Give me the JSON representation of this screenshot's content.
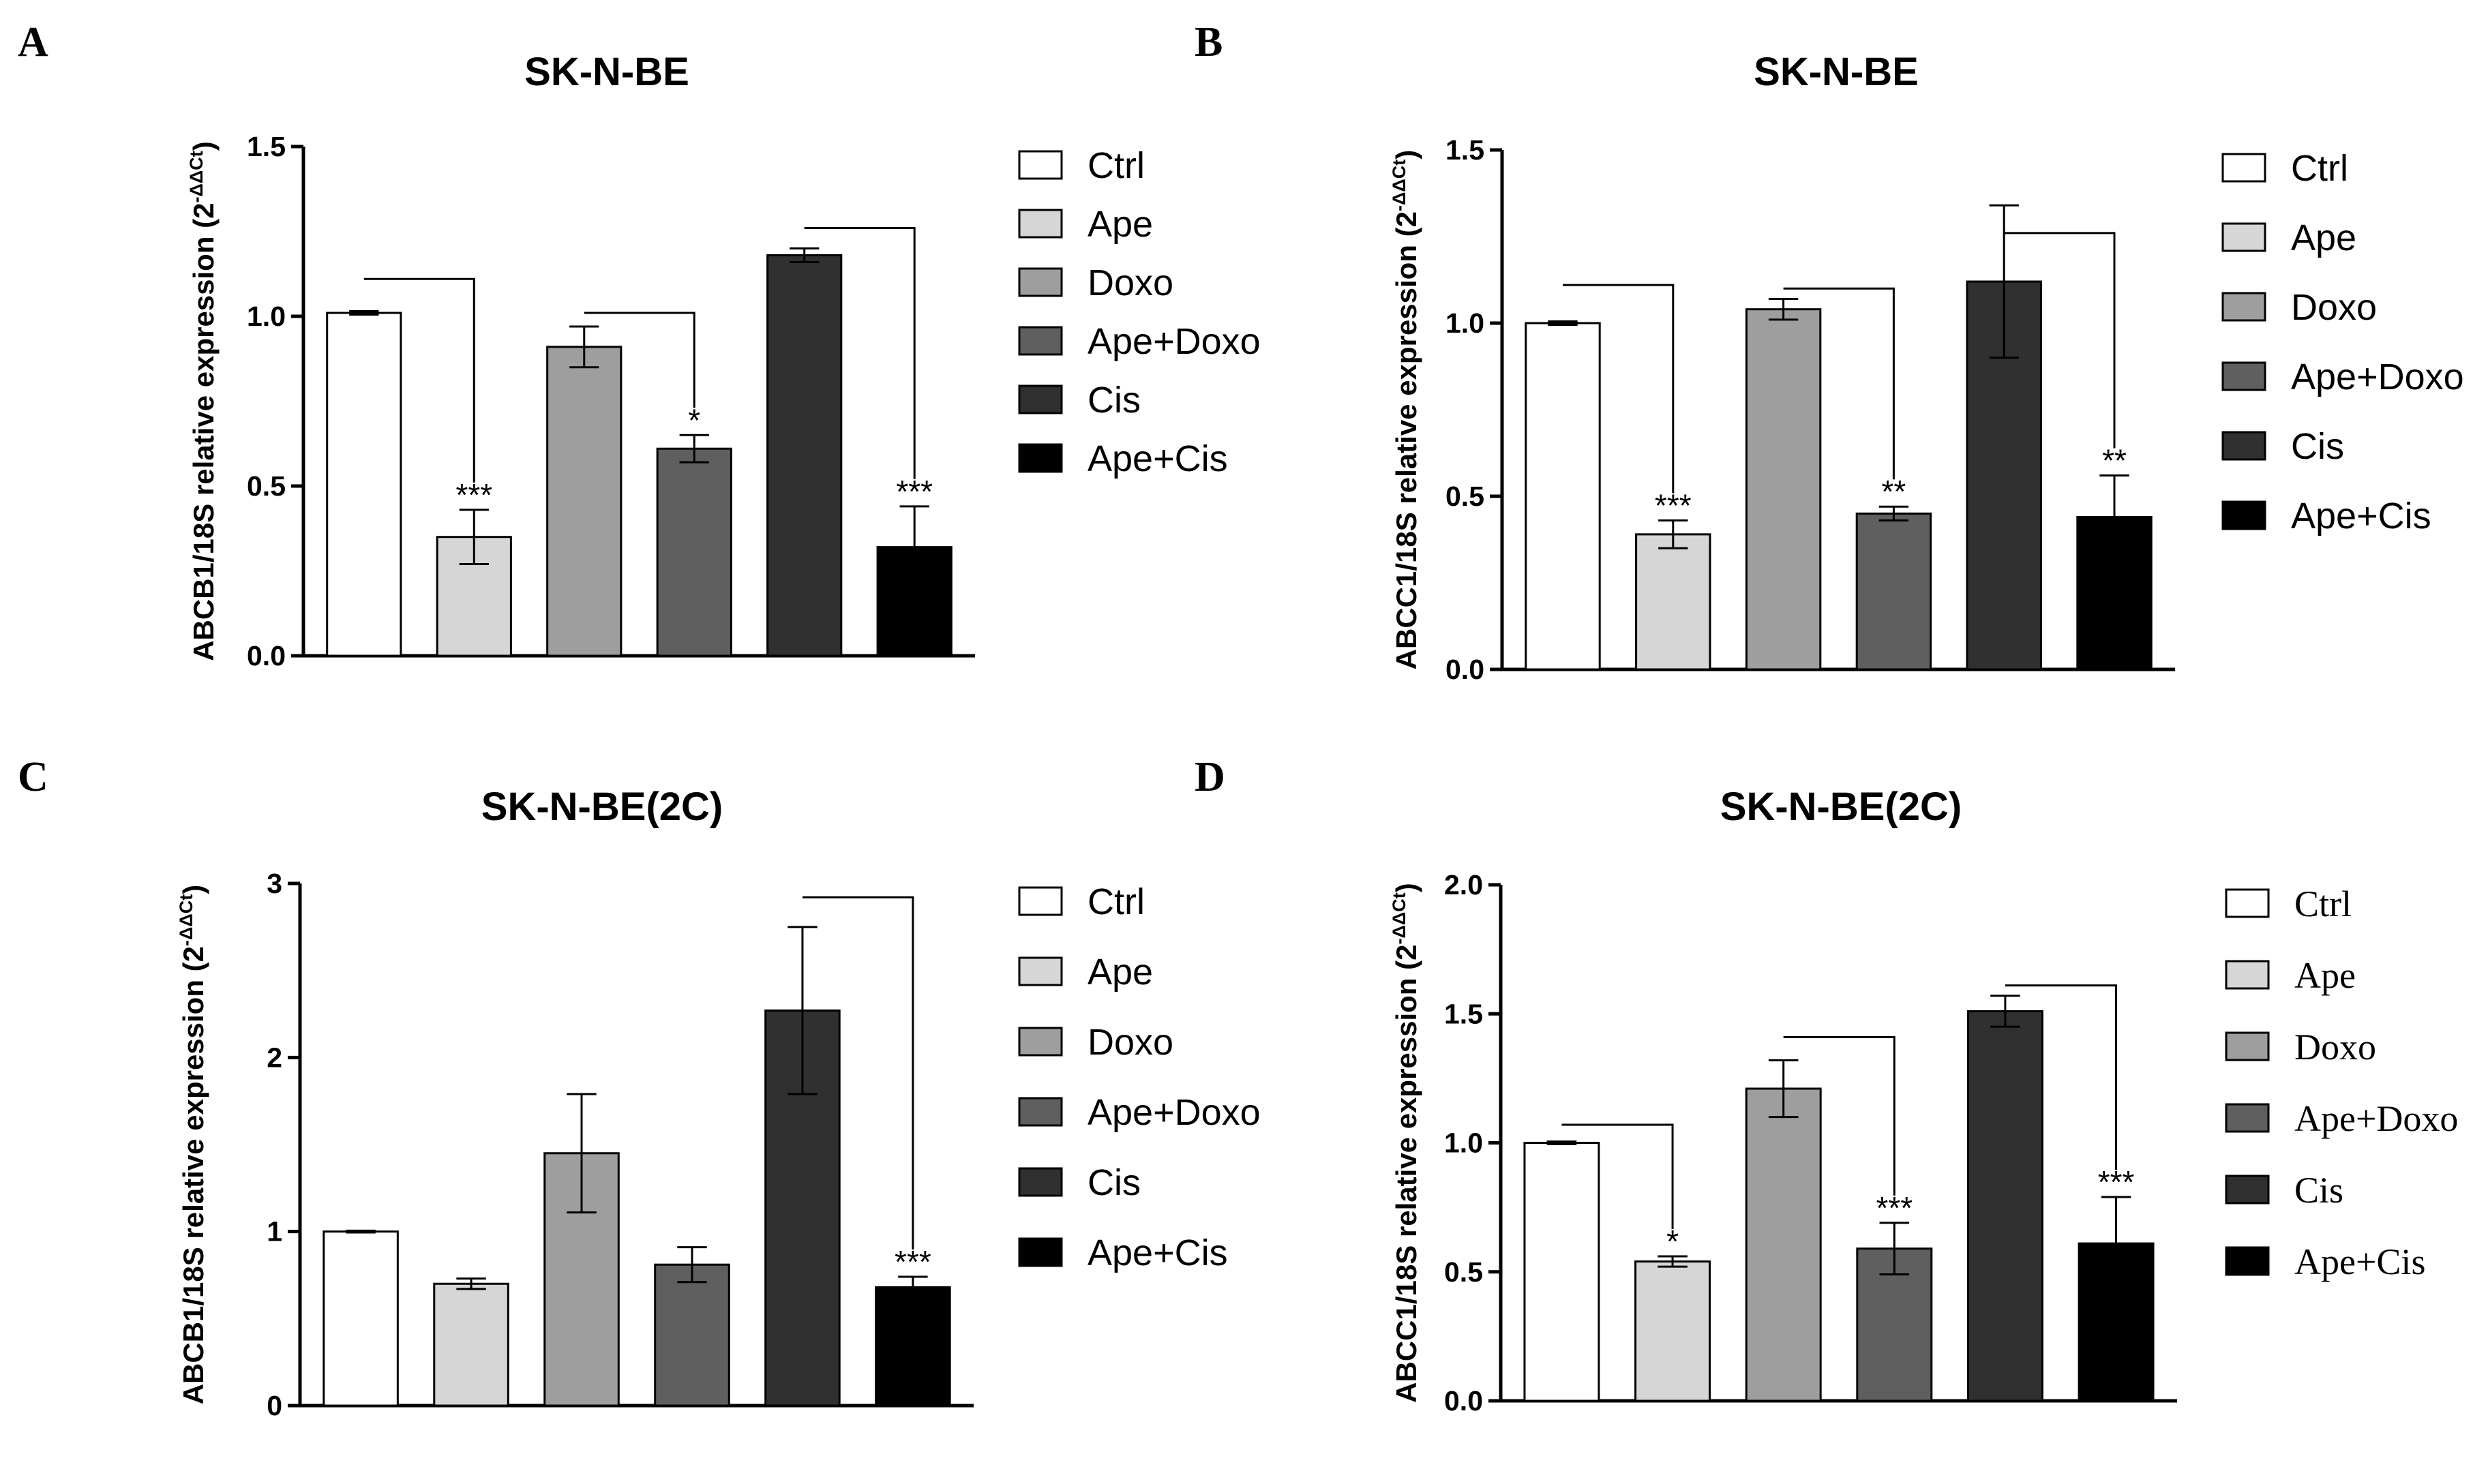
{
  "colors": {
    "Ctrl": "#ffffff",
    "Ape": "#d6d6d6",
    "Doxo": "#9e9e9e",
    "Ape+Doxo": "#5f5f5f",
    "Cis": "#303030",
    "Ape+Cis": "#000000"
  },
  "chart_data": [
    {
      "panel": "A",
      "type": "bar",
      "title": "SK-N-BE",
      "ylabel": "ABCB1/18S relative expression (2",
      "ylabel_sup": "-ΔΔCt",
      "ylabel_close": ")",
      "ylim": [
        0,
        1.5
      ],
      "yticks": [
        0,
        0.5,
        1.0,
        1.5
      ],
      "ytick_labels": [
        "0.0",
        "0.5",
        "1.0",
        "1.5"
      ],
      "categories": [
        "Ctrl",
        "Ape",
        "Doxo",
        "Ape+Doxo",
        "Cis",
        "Ape+Cis"
      ],
      "values": [
        1.01,
        0.35,
        0.91,
        0.61,
        1.18,
        0.32
      ],
      "errors": [
        0.005,
        0.08,
        0.06,
        0.04,
        0.02,
        0.12
      ],
      "significance": [
        "",
        "***",
        "",
        "*",
        "",
        "***"
      ],
      "comparisons": [
        {
          "from": 0,
          "to": 1,
          "level": 1.11
        },
        {
          "from": 2,
          "to": 3,
          "level": 1.01
        },
        {
          "from": 4,
          "to": 5,
          "level": 1.26
        }
      ],
      "legend": [
        "Ctrl",
        "Ape",
        "Doxo",
        "Ape+Doxo",
        "Cis",
        "Ape+Cis"
      ],
      "legend_font": "sans",
      "legend_position": "right"
    },
    {
      "panel": "B",
      "type": "bar",
      "title": "SK-N-BE",
      "ylabel": "ABCC1/18S relative expression (2",
      "ylabel_sup": "-ΔΔCt",
      "ylabel_close": ")",
      "ylim": [
        0,
        1.5
      ],
      "yticks": [
        0,
        0.5,
        1.0,
        1.5
      ],
      "ytick_labels": [
        "0.0",
        "0.5",
        "1.0",
        "1.5"
      ],
      "categories": [
        "Ctrl",
        "Ape",
        "Doxo",
        "Ape+Doxo",
        "Cis",
        "Ape+Cis"
      ],
      "values": [
        1.0,
        0.39,
        1.04,
        0.45,
        1.12,
        0.44
      ],
      "errors": [
        0.005,
        0.04,
        0.03,
        0.02,
        0.22,
        0.12
      ],
      "significance": [
        "",
        "***",
        "",
        "**",
        "",
        "**"
      ],
      "comparisons": [
        {
          "from": 0,
          "to": 1,
          "level": 1.11
        },
        {
          "from": 2,
          "to": 3,
          "level": 1.1
        },
        {
          "from": 4,
          "to": 5,
          "level": 1.26
        }
      ],
      "legend": [
        "Ctrl",
        "Ape",
        "Doxo",
        "Ape+Doxo",
        "Cis",
        "Ape+Cis"
      ],
      "legend_font": "sans",
      "legend_position": "right"
    },
    {
      "panel": "C",
      "type": "bar",
      "title": "SK-N-BE(2C)",
      "ylabel": "ABCB1/18S relative expression (2",
      "ylabel_sup": "-ΔΔCt",
      "ylabel_close": ")",
      "ylim": [
        0,
        3
      ],
      "yticks": [
        0,
        1,
        2,
        3
      ],
      "ytick_labels": [
        "0",
        "1",
        "2",
        "3"
      ],
      "categories": [
        "Ctrl",
        "Ape",
        "Doxo",
        "Ape+Doxo",
        "Cis",
        "Ape+Cis"
      ],
      "values": [
        1.0,
        0.7,
        1.45,
        0.81,
        2.27,
        0.68
      ],
      "errors": [
        0.005,
        0.03,
        0.34,
        0.1,
        0.48,
        0.06
      ],
      "significance": [
        "",
        "",
        "",
        "",
        "",
        "***"
      ],
      "comparisons": [
        {
          "from": 4,
          "to": 5,
          "level": 2.92
        }
      ],
      "legend": [
        "Ctrl",
        "Ape",
        "Doxo",
        "Ape+Doxo",
        "Cis",
        "Ape+Cis"
      ],
      "legend_font": "sans",
      "legend_position": "right"
    },
    {
      "panel": "D",
      "type": "bar",
      "title": "SK-N-BE(2C)",
      "ylabel": "ABCC1/18S relative expression (2",
      "ylabel_sup": "-ΔΔCt",
      "ylabel_close": ")",
      "ylim": [
        0,
        2.0
      ],
      "yticks": [
        0,
        0.5,
        1.0,
        1.5,
        2.0
      ],
      "ytick_labels": [
        "0.0",
        "0.5",
        "1.0",
        "1.5",
        "2.0"
      ],
      "categories": [
        "Ctrl",
        "Ape",
        "Doxo",
        "Ape+Doxo",
        "Cis",
        "Ape+Cis"
      ],
      "values": [
        1.0,
        0.54,
        1.21,
        0.59,
        1.51,
        0.61
      ],
      "errors": [
        0.005,
        0.02,
        0.11,
        0.1,
        0.06,
        0.18
      ],
      "significance": [
        "",
        "*",
        "",
        "***",
        "",
        "***"
      ],
      "comparisons": [
        {
          "from": 0,
          "to": 1,
          "level": 1.07
        },
        {
          "from": 2,
          "to": 3,
          "level": 1.41
        },
        {
          "from": 4,
          "to": 5,
          "level": 1.61
        }
      ],
      "legend": [
        "Ctrl",
        "Ape",
        "Doxo",
        "Ape+Doxo",
        "Cis",
        "Ape+Cis"
      ],
      "legend_font": "serif",
      "legend_position": "right"
    }
  ]
}
